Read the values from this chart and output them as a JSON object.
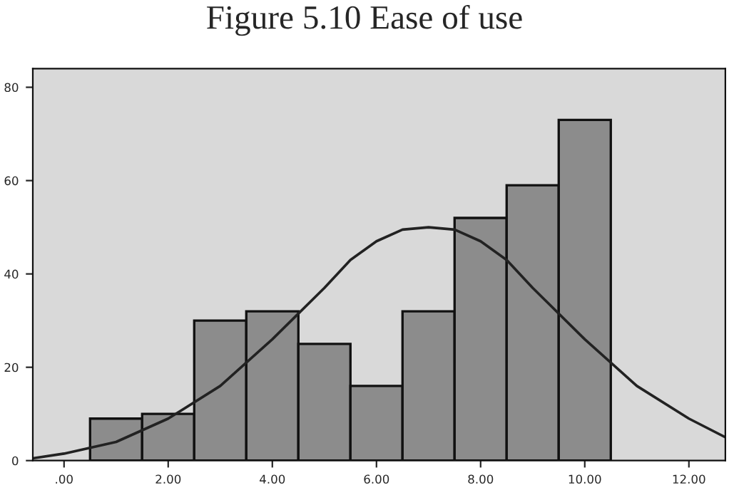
{
  "chart_data": {
    "type": "histogram",
    "title": "Figure 5.10 Ease of use",
    "bins": [
      0.5,
      1.5,
      2.5,
      3.5,
      4.5,
      5.5,
      6.5,
      7.5,
      8.5,
      9.5,
      10.5
    ],
    "values": [
      9,
      10,
      30,
      32,
      25,
      16,
      32,
      52,
      59,
      73
    ],
    "color": "#8c8c8c",
    "series": [
      {
        "type": "line",
        "color": "#222222",
        "x": [
          -0.6,
          0,
          1,
          2,
          3,
          4,
          5,
          5.5,
          6,
          6.5,
          7,
          7.5,
          8,
          8.5,
          9,
          10,
          11,
          12,
          12.7
        ],
        "values": [
          0.5,
          1.5,
          4,
          9,
          16,
          26,
          37,
          43,
          47,
          49.5,
          50,
          49.5,
          47,
          43,
          37,
          26,
          16,
          9,
          5
        ]
      }
    ],
    "xlim": [
      -0.6,
      12.7
    ],
    "ylim": [
      0,
      84
    ],
    "xticks": [
      {
        "value": 0,
        "label": ".00"
      },
      {
        "value": 2,
        "label": "2.00"
      },
      {
        "value": 4,
        "label": "4.00"
      },
      {
        "value": 6,
        "label": "6.00"
      },
      {
        "value": 8,
        "label": "8.00"
      },
      {
        "value": 10,
        "label": "10.00"
      },
      {
        "value": 12,
        "label": "12.00"
      }
    ],
    "yticks": [
      0,
      20,
      40,
      60,
      80
    ],
    "grid": false,
    "legend": false
  }
}
